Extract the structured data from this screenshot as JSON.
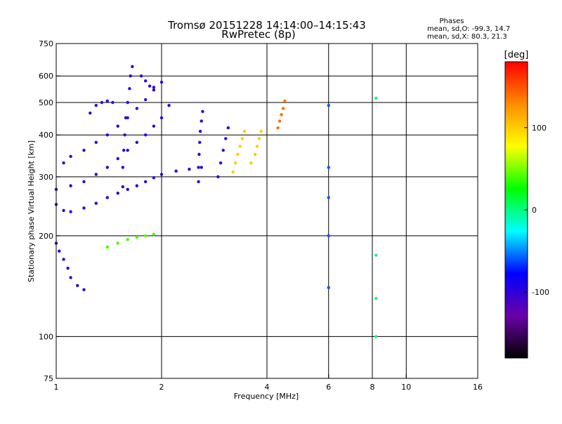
{
  "chart_data": {
    "type": "scatter",
    "title": "Tromsø 20151228 14:14:00–14:15:43",
    "subtitle": "RwPretec (8p)",
    "xlabel": "Frequency [MHz]",
    "ylabel": "Stationary phase Virtual Height [km]",
    "x_scale": "log",
    "y_scale": "log",
    "xlim": [
      1,
      16
    ],
    "ylim": [
      75,
      750
    ],
    "x_ticks": [
      {
        "value": 1,
        "label": "1"
      },
      {
        "value": 2,
        "label": "2"
      },
      {
        "value": 4,
        "label": "4"
      },
      {
        "value": 6,
        "label": "6"
      },
      {
        "value": 8,
        "label": "8"
      },
      {
        "value": 10,
        "label": "10"
      },
      {
        "value": 16,
        "label": "16"
      }
    ],
    "y_ticks": [
      {
        "value": 75,
        "label": "75"
      },
      {
        "value": 100,
        "label": "100"
      },
      {
        "value": 200,
        "label": "200"
      },
      {
        "value": 300,
        "label": "300"
      },
      {
        "value": 400,
        "label": "400"
      },
      {
        "value": 500,
        "label": "500"
      },
      {
        "value": 600,
        "label": "600"
      },
      {
        "value": 750,
        "label": "750"
      }
    ],
    "x_gridlines": [
      2,
      4,
      6,
      8,
      10
    ],
    "y_gridlines": [
      100,
      200,
      300,
      400,
      500,
      600
    ],
    "stats": {
      "heading": "Phases",
      "line_o": "mean, sd,O: -99.3, 14.7",
      "line_x": "mean, sd,X:  80.3, 21.3"
    },
    "colorbar": {
      "label": "[deg]",
      "range": [
        -180,
        180
      ],
      "ticks": [
        {
          "value": 100,
          "label": "100"
        },
        {
          "value": 0,
          "label": "0"
        },
        {
          "value": -100,
          "label": "-100"
        }
      ],
      "colors": [
        "#000000",
        "#6a00a8",
        "#0000ff",
        "#00ffff",
        "#00ff00",
        "#ffff00",
        "#ff8c00",
        "#ff0000"
      ]
    },
    "traces": [
      {
        "name": "",
        "phase": -100,
        "points": [
          [
            1.0,
            248
          ],
          [
            1.05,
            238
          ],
          [
            1.1,
            236
          ],
          [
            1.2,
            242
          ],
          [
            1.3,
            250
          ],
          [
            1.4,
            260
          ],
          [
            1.5,
            268
          ],
          [
            1.6,
            275
          ],
          [
            1.7,
            282
          ],
          [
            1.8,
            290
          ],
          [
            1.9,
            298
          ],
          [
            2.0,
            305
          ],
          [
            2.2,
            312
          ],
          [
            2.4,
            316
          ],
          [
            2.6,
            320
          ]
        ]
      },
      {
        "name": "",
        "phase": -100,
        "points": [
          [
            1.0,
            275
          ],
          [
            1.1,
            282
          ],
          [
            1.2,
            290
          ],
          [
            1.3,
            305
          ],
          [
            1.4,
            320
          ],
          [
            1.5,
            340
          ],
          [
            1.6,
            360
          ],
          [
            1.7,
            380
          ],
          [
            1.8,
            400
          ],
          [
            1.9,
            425
          ],
          [
            2.0,
            450
          ],
          [
            2.1,
            490
          ]
        ]
      },
      {
        "name": "",
        "phase": -100,
        "points": [
          [
            1.05,
            330
          ],
          [
            1.1,
            345
          ],
          [
            1.2,
            360
          ],
          [
            1.3,
            380
          ],
          [
            1.4,
            400
          ],
          [
            1.5,
            425
          ],
          [
            1.6,
            450
          ],
          [
            1.7,
            480
          ],
          [
            1.8,
            510
          ],
          [
            1.9,
            545
          ],
          [
            2.0,
            575
          ]
        ]
      },
      {
        "name": "",
        "phase": -100,
        "points": [
          [
            1.25,
            465
          ],
          [
            1.3,
            490
          ],
          [
            1.35,
            500
          ],
          [
            1.4,
            505
          ],
          [
            1.45,
            500
          ]
        ]
      },
      {
        "name": "",
        "phase": -100,
        "points": [
          [
            1.55,
            280
          ],
          [
            1.55,
            320
          ],
          [
            1.56,
            360
          ],
          [
            1.57,
            400
          ],
          [
            1.58,
            450
          ],
          [
            1.6,
            500
          ],
          [
            1.62,
            550
          ],
          [
            1.63,
            600
          ],
          [
            1.65,
            640
          ]
        ]
      },
      {
        "name": "",
        "phase": -100,
        "points": [
          [
            1.75,
            600
          ],
          [
            1.8,
            580
          ],
          [
            1.85,
            560
          ],
          [
            1.9,
            555
          ]
        ]
      },
      {
        "name": "",
        "phase": -100,
        "points": [
          [
            2.55,
            290
          ],
          [
            2.55,
            320
          ],
          [
            2.56,
            350
          ],
          [
            2.57,
            380
          ],
          [
            2.58,
            410
          ],
          [
            2.6,
            440
          ],
          [
            2.62,
            470
          ]
        ]
      },
      {
        "name": "",
        "phase": -100,
        "points": [
          [
            2.9,
            300
          ],
          [
            2.95,
            330
          ],
          [
            3.0,
            360
          ],
          [
            3.05,
            390
          ],
          [
            3.1,
            420
          ]
        ]
      },
      {
        "name": "",
        "phase": 100,
        "points": [
          [
            3.2,
            310
          ],
          [
            3.25,
            330
          ],
          [
            3.3,
            350
          ],
          [
            3.35,
            370
          ],
          [
            3.4,
            390
          ],
          [
            3.45,
            410
          ]
        ]
      },
      {
        "name": "",
        "phase": 100,
        "points": [
          [
            3.6,
            330
          ],
          [
            3.7,
            350
          ],
          [
            3.75,
            370
          ],
          [
            3.8,
            390
          ],
          [
            3.85,
            410
          ]
        ]
      },
      {
        "name": "",
        "phase": 140,
        "points": [
          [
            4.3,
            420
          ],
          [
            4.35,
            440
          ],
          [
            4.4,
            460
          ],
          [
            4.45,
            480
          ],
          [
            4.5,
            505
          ]
        ]
      },
      {
        "name": "",
        "phase": -100,
        "points": [
          [
            1.0,
            190
          ],
          [
            1.02,
            180
          ],
          [
            1.05,
            170
          ],
          [
            1.08,
            160
          ],
          [
            1.1,
            150
          ],
          [
            1.15,
            142
          ],
          [
            1.2,
            138
          ]
        ]
      },
      {
        "name": "",
        "phase": 40,
        "points": [
          [
            1.4,
            185
          ],
          [
            1.5,
            190
          ],
          [
            1.6,
            195
          ],
          [
            1.7,
            198
          ],
          [
            1.8,
            200
          ],
          [
            1.9,
            202
          ]
        ]
      },
      {
        "name": "",
        "phase": -60,
        "points": [
          [
            6.0,
            140
          ],
          [
            6.0,
            200
          ],
          [
            6.0,
            260
          ],
          [
            6.0,
            320
          ],
          [
            6.0,
            490
          ]
        ]
      },
      {
        "name": "",
        "phase": 0,
        "points": [
          [
            8.2,
            100
          ],
          [
            8.2,
            130
          ],
          [
            8.2,
            175
          ],
          [
            8.2,
            515
          ]
        ]
      }
    ]
  }
}
